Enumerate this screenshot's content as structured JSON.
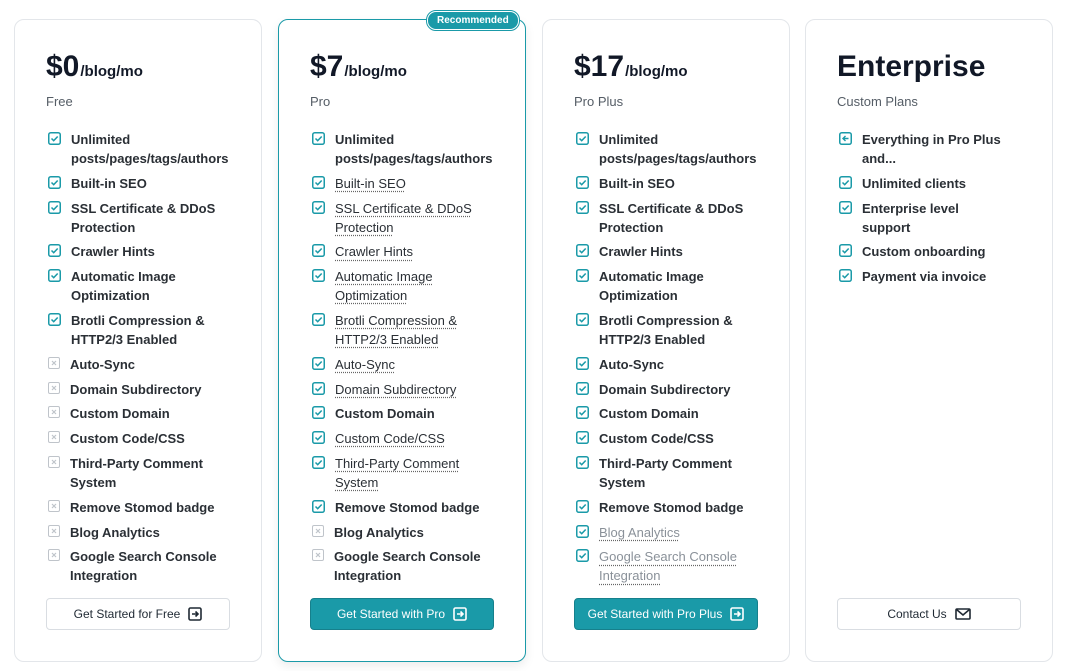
{
  "plans": [
    {
      "price": "$0",
      "period": "/blog/mo",
      "name": "Free",
      "button": "Get Started for Free",
      "button_style": "outline",
      "button_icon": "arrow",
      "features": [
        {
          "text": "Unlimited posts/pages/tags/authors",
          "status": "yes"
        },
        {
          "text": "Built-in SEO",
          "status": "yes"
        },
        {
          "text": "SSL Certificate & DDoS Protection",
          "status": "yes"
        },
        {
          "text": "Crawler Hints",
          "status": "yes"
        },
        {
          "text": "Automatic Image Optimization",
          "status": "yes"
        },
        {
          "text": "Brotli Compression & HTTP2/3 Enabled",
          "status": "yes"
        },
        {
          "text": "Auto-Sync",
          "status": "no"
        },
        {
          "text": "Domain Subdirectory",
          "status": "no"
        },
        {
          "text": "Custom Domain",
          "status": "no"
        },
        {
          "text": "Custom Code/CSS",
          "status": "no"
        },
        {
          "text": "Third-Party Comment System",
          "status": "no"
        },
        {
          "text": "Remove Stomod badge",
          "status": "no"
        },
        {
          "text": "Blog Analytics",
          "status": "no"
        },
        {
          "text": "Google Search Console Integration",
          "status": "no"
        }
      ]
    },
    {
      "price": "$7",
      "period": "/blog/mo",
      "name": "Pro",
      "badge": "Recommended",
      "button": "Get Started with Pro",
      "button_style": "filled",
      "button_icon": "arrow",
      "features": [
        {
          "text": "Unlimited posts/pages/tags/authors",
          "status": "yes"
        },
        {
          "text": "Built-in SEO",
          "status": "yes",
          "dotted": true
        },
        {
          "text": "SSL Certificate & DDoS Protection",
          "status": "yes",
          "dotted": true
        },
        {
          "text": "Crawler Hints",
          "status": "yes",
          "dotted": true
        },
        {
          "text": "Automatic Image Optimization",
          "status": "yes",
          "dotted": true
        },
        {
          "text": "Brotli Compression & HTTP2/3 Enabled",
          "status": "yes",
          "dotted": true
        },
        {
          "text": "Auto-Sync",
          "status": "yes",
          "dotted": true
        },
        {
          "text": "Domain Subdirectory",
          "status": "yes",
          "dotted": true
        },
        {
          "text": "Custom Domain",
          "status": "yes"
        },
        {
          "text": "Custom Code/CSS",
          "status": "yes",
          "dotted": true
        },
        {
          "text": "Third-Party Comment System",
          "status": "yes",
          "dotted": true
        },
        {
          "text": "Remove Stomod badge",
          "status": "yes"
        },
        {
          "text": "Blog Analytics",
          "status": "no"
        },
        {
          "text": "Google Search Console Integration",
          "status": "no"
        }
      ]
    },
    {
      "price": "$17",
      "period": "/blog/mo",
      "name": "Pro Plus",
      "button": "Get Started with Pro Plus",
      "button_style": "filled",
      "button_icon": "arrow",
      "features": [
        {
          "text": "Unlimited posts/pages/tags/authors",
          "status": "yes"
        },
        {
          "text": "Built-in SEO",
          "status": "yes"
        },
        {
          "text": "SSL Certificate & DDoS Protection",
          "status": "yes"
        },
        {
          "text": "Crawler Hints",
          "status": "yes"
        },
        {
          "text": "Automatic Image Optimization",
          "status": "yes"
        },
        {
          "text": "Brotli Compression & HTTP2/3 Enabled",
          "status": "yes"
        },
        {
          "text": "Auto-Sync",
          "status": "yes"
        },
        {
          "text": "Domain Subdirectory",
          "status": "yes"
        },
        {
          "text": "Custom Domain",
          "status": "yes"
        },
        {
          "text": "Custom Code/CSS",
          "status": "yes"
        },
        {
          "text": "Third-Party Comment System",
          "status": "yes"
        },
        {
          "text": "Remove Stomod badge",
          "status": "yes"
        },
        {
          "text": "Blog Analytics",
          "status": "yes",
          "dotted": true,
          "muted": true
        },
        {
          "text": "Google Search Console Integration",
          "status": "yes",
          "dotted": true,
          "muted": true
        }
      ]
    },
    {
      "price": "Enterprise",
      "name": "Custom Plans",
      "button": "Contact Us",
      "button_style": "outline",
      "button_icon": "mail",
      "features": [
        {
          "text": "Everything in Pro Plus and...",
          "status": "all"
        },
        {
          "text": "Unlimited clients",
          "status": "yes"
        },
        {
          "text": "Enterprise level support",
          "status": "yes"
        },
        {
          "text": "Custom onboarding",
          "status": "yes"
        },
        {
          "text": "Payment via invoice",
          "status": "yes"
        }
      ]
    }
  ]
}
